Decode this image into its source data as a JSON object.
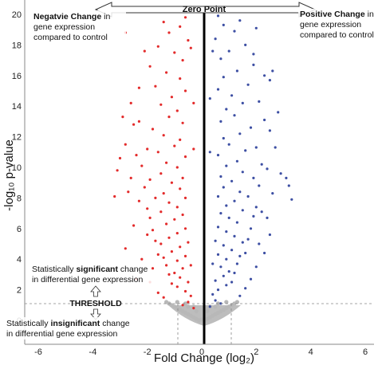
{
  "chart_data": {
    "type": "scatter",
    "title": "",
    "xlabel": "Fold Change (log₂)",
    "ylabel": "-log₁₀ p-value",
    "xlim": [
      -6.2,
      6
    ],
    "ylim": [
      -1.2,
      20
    ],
    "x_ticks": [
      -6,
      -4,
      -2,
      0,
      2,
      4,
      6
    ],
    "y_ticks": [
      0,
      2,
      4,
      6,
      8,
      10,
      12,
      14,
      16,
      18,
      20
    ],
    "threshold_y": 1.3,
    "fold_change_cutoffs": [
      -1,
      1
    ],
    "series": [
      {
        "color": "#e32b2b",
        "description": "significant negative change",
        "points": [
          [
            -0.3,
            0.8
          ],
          [
            -0.5,
            1.2
          ],
          [
            -0.7,
            1.0
          ],
          [
            -0.4,
            1.6
          ],
          [
            -0.6,
            1.9
          ],
          [
            -0.9,
            2.2
          ],
          [
            -0.5,
            2.5
          ],
          [
            -0.8,
            2.8
          ],
          [
            -1.1,
            2.4
          ],
          [
            -1.0,
            3.1
          ],
          [
            -0.7,
            3.4
          ],
          [
            -1.2,
            3.0
          ],
          [
            -0.4,
            3.6
          ],
          [
            -0.9,
            3.9
          ],
          [
            -1.3,
            3.6
          ],
          [
            -0.6,
            4.2
          ],
          [
            -1.1,
            4.5
          ],
          [
            -1.4,
            4.1
          ],
          [
            -0.8,
            4.8
          ],
          [
            -1.6,
            4.3
          ],
          [
            -0.5,
            5.1
          ],
          [
            -1.2,
            5.4
          ],
          [
            -1.5,
            5.0
          ],
          [
            -0.9,
            5.7
          ],
          [
            -1.7,
            5.2
          ],
          [
            -0.6,
            6.0
          ],
          [
            -1.3,
            6.3
          ],
          [
            -1.8,
            5.9
          ],
          [
            -1.0,
            6.6
          ],
          [
            -0.7,
            6.9
          ],
          [
            -1.5,
            7.1
          ],
          [
            -1.9,
            6.7
          ],
          [
            -0.9,
            7.4
          ],
          [
            -1.2,
            7.7
          ],
          [
            -2.0,
            7.3
          ],
          [
            -0.6,
            8.0
          ],
          [
            -1.4,
            8.3
          ],
          [
            -1.7,
            8.0
          ],
          [
            -0.8,
            8.6
          ],
          [
            -1.1,
            9.0
          ],
          [
            -2.1,
            8.7
          ],
          [
            -0.7,
            9.3
          ],
          [
            -1.5,
            9.6
          ],
          [
            -1.9,
            9.2
          ],
          [
            -0.9,
            10.0
          ],
          [
            -1.3,
            10.3
          ],
          [
            -2.2,
            10.1
          ],
          [
            -0.6,
            10.7
          ],
          [
            -1.6,
            11.0
          ],
          [
            -1.0,
            11.4
          ],
          [
            -2.0,
            11.2
          ],
          [
            -0.8,
            11.8
          ],
          [
            -1.4,
            12.1
          ],
          [
            -1.8,
            12.5
          ],
          [
            -0.7,
            12.9
          ],
          [
            -1.2,
            13.3
          ],
          [
            -2.3,
            13.0
          ],
          [
            -0.9,
            13.7
          ],
          [
            -1.5,
            14.1
          ],
          [
            -1.1,
            14.6
          ],
          [
            -0.6,
            15.0
          ],
          [
            -1.7,
            15.3
          ],
          [
            -0.8,
            15.8
          ],
          [
            -1.3,
            16.2
          ],
          [
            -1.9,
            16.6
          ],
          [
            -0.7,
            17.0
          ],
          [
            -1.0,
            17.5
          ],
          [
            -1.6,
            17.9
          ],
          [
            -0.5,
            18.3
          ],
          [
            -1.2,
            18.8
          ],
          [
            -0.8,
            19.2
          ],
          [
            -1.4,
            19.5
          ],
          [
            -0.6,
            19.8
          ],
          [
            -2.6,
            14.2
          ],
          [
            -2.8,
            11.5
          ],
          [
            -3.1,
            9.8
          ],
          [
            -2.4,
            10.8
          ],
          [
            -2.7,
            8.4
          ],
          [
            -2.5,
            12.8
          ],
          [
            -2.9,
            13.3
          ],
          [
            -3.2,
            8.1
          ],
          [
            -2.8,
            4.7
          ],
          [
            -2.5,
            6.2
          ],
          [
            -2.3,
            15.2
          ],
          [
            -2.1,
            17.6
          ],
          [
            -2.8,
            18.8
          ],
          [
            -3.0,
            10.6
          ],
          [
            -2.2,
            4.0
          ],
          [
            -2.4,
            2.7
          ],
          [
            -1.9,
            2.5
          ],
          [
            -1.6,
            1.8
          ],
          [
            -1.4,
            1.5
          ],
          [
            -1.8,
            3.4
          ],
          [
            -2.0,
            5.6
          ],
          [
            -2.3,
            7.8
          ],
          [
            -2.6,
            9.3
          ],
          [
            -0.3,
            14.2
          ],
          [
            -0.4,
            17.8
          ],
          [
            -0.3,
            11.2
          ]
        ]
      },
      {
        "color": "#3d4fa3",
        "description": "significant positive change",
        "points": [
          [
            0.3,
            0.9
          ],
          [
            0.5,
            1.3
          ],
          [
            0.7,
            1.1
          ],
          [
            0.4,
            1.7
          ],
          [
            0.6,
            2.0
          ],
          [
            0.9,
            2.3
          ],
          [
            0.5,
            2.6
          ],
          [
            0.8,
            2.9
          ],
          [
            1.1,
            2.5
          ],
          [
            1.0,
            3.2
          ],
          [
            0.7,
            3.5
          ],
          [
            1.2,
            3.1
          ],
          [
            0.4,
            3.7
          ],
          [
            0.9,
            4.0
          ],
          [
            1.3,
            3.7
          ],
          [
            0.6,
            4.3
          ],
          [
            1.1,
            4.6
          ],
          [
            1.4,
            4.2
          ],
          [
            0.8,
            4.9
          ],
          [
            1.6,
            4.4
          ],
          [
            0.5,
            5.2
          ],
          [
            1.2,
            5.5
          ],
          [
            1.5,
            5.1
          ],
          [
            0.9,
            5.8
          ],
          [
            1.7,
            5.3
          ],
          [
            0.6,
            6.1
          ],
          [
            1.3,
            6.4
          ],
          [
            1.8,
            6.0
          ],
          [
            1.0,
            6.7
          ],
          [
            0.7,
            7.0
          ],
          [
            1.5,
            7.2
          ],
          [
            1.9,
            6.8
          ],
          [
            0.9,
            7.5
          ],
          [
            1.2,
            7.8
          ],
          [
            2.0,
            7.4
          ],
          [
            0.6,
            8.1
          ],
          [
            1.4,
            8.4
          ],
          [
            1.7,
            8.1
          ],
          [
            0.8,
            8.7
          ],
          [
            1.1,
            9.1
          ],
          [
            2.1,
            8.8
          ],
          [
            0.7,
            9.4
          ],
          [
            1.5,
            9.7
          ],
          [
            1.9,
            9.3
          ],
          [
            0.9,
            10.1
          ],
          [
            1.3,
            10.4
          ],
          [
            2.2,
            10.2
          ],
          [
            0.6,
            10.8
          ],
          [
            1.6,
            11.1
          ],
          [
            1.0,
            11.5
          ],
          [
            2.0,
            11.3
          ],
          [
            0.8,
            11.9
          ],
          [
            1.4,
            12.2
          ],
          [
            1.8,
            12.6
          ],
          [
            0.7,
            13.0
          ],
          [
            1.2,
            13.4
          ],
          [
            2.3,
            13.1
          ],
          [
            0.9,
            13.8
          ],
          [
            1.5,
            14.2
          ],
          [
            1.1,
            14.7
          ],
          [
            0.6,
            15.1
          ],
          [
            1.7,
            15.4
          ],
          [
            0.8,
            15.9
          ],
          [
            1.3,
            16.3
          ],
          [
            1.9,
            16.7
          ],
          [
            0.7,
            17.1
          ],
          [
            1.0,
            17.6
          ],
          [
            1.6,
            18.0
          ],
          [
            0.5,
            18.4
          ],
          [
            1.2,
            18.9
          ],
          [
            0.8,
            19.3
          ],
          [
            1.4,
            19.6
          ],
          [
            0.6,
            19.9
          ],
          [
            2.5,
            15.7
          ],
          [
            2.6,
            16.3
          ],
          [
            2.3,
            16.0
          ],
          [
            3.1,
            9.3
          ],
          [
            3.2,
            8.8
          ],
          [
            2.9,
            9.6
          ],
          [
            3.3,
            7.9
          ],
          [
            2.7,
            11.3
          ],
          [
            2.5,
            12.4
          ],
          [
            2.4,
            9.9
          ],
          [
            2.8,
            13.6
          ],
          [
            2.2,
            7.1
          ],
          [
            2.5,
            5.6
          ],
          [
            2.3,
            4.4
          ],
          [
            2.0,
            3.5
          ],
          [
            1.8,
            2.7
          ],
          [
            1.6,
            2.1
          ],
          [
            1.4,
            1.6
          ],
          [
            2.1,
            5.0
          ],
          [
            2.4,
            6.7
          ],
          [
            2.6,
            8.3
          ],
          [
            2.1,
            14.3
          ],
          [
            1.9,
            17.4
          ],
          [
            0.3,
            14.5
          ],
          [
            0.4,
            17.6
          ],
          [
            0.3,
            11.0
          ],
          [
            2.0,
            19.1
          ]
        ]
      },
      {
        "color": "#b8b8b8",
        "description": "not significant",
        "points": [
          [
            -0.1,
            0.0
          ],
          [
            0.1,
            0.0
          ],
          [
            0.0,
            0.05
          ],
          [
            -0.2,
            0.1
          ],
          [
            0.2,
            0.1
          ],
          [
            -0.3,
            0.2
          ],
          [
            0.3,
            0.2
          ],
          [
            -0.4,
            0.3
          ],
          [
            0.4,
            0.3
          ],
          [
            -0.5,
            0.4
          ],
          [
            0.5,
            0.4
          ],
          [
            -0.6,
            0.5
          ],
          [
            0.6,
            0.5
          ],
          [
            -0.7,
            0.6
          ],
          [
            0.7,
            0.6
          ],
          [
            -0.8,
            0.7
          ],
          [
            0.8,
            0.7
          ],
          [
            -0.9,
            0.8
          ],
          [
            0.9,
            0.8
          ],
          [
            -1.0,
            0.9
          ],
          [
            1.0,
            0.9
          ],
          [
            -1.1,
            1.0
          ],
          [
            1.1,
            1.0
          ],
          [
            -1.2,
            1.1
          ],
          [
            1.2,
            1.1
          ],
          [
            -1.3,
            1.2
          ],
          [
            1.3,
            1.2
          ],
          [
            -0.3,
            0.9
          ],
          [
            0.3,
            0.9
          ],
          [
            -0.6,
            1.1
          ],
          [
            0.6,
            1.1
          ],
          [
            -0.9,
            1.2
          ],
          [
            0.9,
            1.2
          ],
          [
            -0.2,
            0.6
          ],
          [
            0.2,
            0.6
          ],
          [
            -0.5,
            0.9
          ],
          [
            0.5,
            0.9
          ]
        ]
      }
    ]
  },
  "annotations": {
    "zero_point": "Zero Point",
    "negative_bold": "Negatvie Change",
    "negative_rest_1": " in",
    "negative_line_2": "gene expression",
    "negative_line_3": "compared to control",
    "positive_bold": "Positive Change",
    "positive_rest_1": " in",
    "positive_line_2": "gene expression",
    "positive_line_3": "compared to control",
    "sig_line_1_pre": "Statistically ",
    "sig_line_1_bold": "significant",
    "sig_line_1_post": " change",
    "sig_line_2": "in differential gene expression",
    "threshold": "THRESHOLD",
    "insig_line_1_pre": "Statistically ",
    "insig_line_1_bold": "insignificant",
    "insig_line_1_post": " change",
    "insig_line_2": "in differential gene expression"
  }
}
